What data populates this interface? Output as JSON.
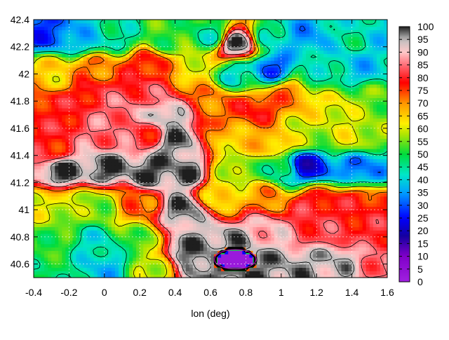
{
  "chart_data": {
    "type": "heatmap",
    "title": "",
    "xlabel": "lon (deg)",
    "ylabel": "",
    "xlim": [
      -0.4,
      1.6
    ],
    "ylim": [
      40.5,
      42.4
    ],
    "x_ticks": [
      "-0.4",
      "-0.2",
      "0",
      "0.2",
      "0.4",
      "0.6",
      "0.8",
      "1",
      "1.2",
      "1.4",
      "1.6"
    ],
    "y_ticks": [
      "40.6",
      "40.8",
      "41",
      "41.2",
      "41.4",
      "41.6",
      "41.8",
      "42",
      "42.2",
      "42.4"
    ],
    "colorbar_ticks": [
      "0",
      "5",
      "10",
      "15",
      "20",
      "25",
      "30",
      "35",
      "40",
      "45",
      "50",
      "55",
      "60",
      "65",
      "70",
      "75",
      "80",
      "85",
      "90",
      "95",
      "100"
    ],
    "colorbar_range": [
      0,
      100
    ],
    "grid": true,
    "contours": true,
    "value_regions": [
      {
        "lon": -0.32,
        "lat": 42.3,
        "value": 28
      },
      {
        "lon": -0.1,
        "lat": 42.25,
        "value": 38
      },
      {
        "lon": 0.1,
        "lat": 42.28,
        "value": 45
      },
      {
        "lon": 0.35,
        "lat": 42.25,
        "value": 52
      },
      {
        "lon": 0.6,
        "lat": 42.28,
        "value": 45
      },
      {
        "lon": 0.75,
        "lat": 42.22,
        "value": 99
      },
      {
        "lon": 0.95,
        "lat": 42.25,
        "value": 42
      },
      {
        "lon": 1.15,
        "lat": 42.28,
        "value": 35
      },
      {
        "lon": 1.4,
        "lat": 42.28,
        "value": 45
      },
      {
        "lon": 1.55,
        "lat": 42.3,
        "value": 40
      },
      {
        "lon": -0.3,
        "lat": 42.0,
        "value": 65
      },
      {
        "lon": -0.05,
        "lat": 42.05,
        "value": 72
      },
      {
        "lon": 0.25,
        "lat": 42.08,
        "value": 78
      },
      {
        "lon": 0.5,
        "lat": 42.05,
        "value": 62
      },
      {
        "lon": 0.75,
        "lat": 42.0,
        "value": 42
      },
      {
        "lon": 0.95,
        "lat": 42.05,
        "value": 30
      },
      {
        "lon": 1.2,
        "lat": 42.0,
        "value": 45
      },
      {
        "lon": 1.45,
        "lat": 42.05,
        "value": 38
      },
      {
        "lon": -0.3,
        "lat": 41.75,
        "value": 78
      },
      {
        "lon": -0.05,
        "lat": 41.85,
        "value": 80
      },
      {
        "lon": 0.1,
        "lat": 41.75,
        "value": 86
      },
      {
        "lon": 0.25,
        "lat": 41.85,
        "value": 82
      },
      {
        "lon": 0.35,
        "lat": 41.7,
        "value": 96
      },
      {
        "lon": 0.6,
        "lat": 41.8,
        "value": 72
      },
      {
        "lon": 0.85,
        "lat": 41.75,
        "value": 78
      },
      {
        "lon": 1.05,
        "lat": 41.85,
        "value": 72
      },
      {
        "lon": 1.3,
        "lat": 41.75,
        "value": 62
      },
      {
        "lon": 1.5,
        "lat": 41.8,
        "value": 55
      },
      {
        "lon": -0.3,
        "lat": 41.45,
        "value": 78
      },
      {
        "lon": 0.0,
        "lat": 41.55,
        "value": 85
      },
      {
        "lon": 0.25,
        "lat": 41.55,
        "value": 80
      },
      {
        "lon": 0.4,
        "lat": 41.5,
        "value": 98
      },
      {
        "lon": 0.7,
        "lat": 41.5,
        "value": 65
      },
      {
        "lon": 0.95,
        "lat": 41.5,
        "value": 68
      },
      {
        "lon": 1.15,
        "lat": 41.55,
        "value": 58
      },
      {
        "lon": 1.4,
        "lat": 41.55,
        "value": 60
      },
      {
        "lon": -0.25,
        "lat": 41.28,
        "value": 99
      },
      {
        "lon": 0.0,
        "lat": 41.3,
        "value": 99
      },
      {
        "lon": 0.25,
        "lat": 41.28,
        "value": 99
      },
      {
        "lon": 0.45,
        "lat": 41.28,
        "value": 98
      },
      {
        "lon": 0.75,
        "lat": 41.3,
        "value": 55
      },
      {
        "lon": 1.0,
        "lat": 41.28,
        "value": 45
      },
      {
        "lon": 1.15,
        "lat": 41.32,
        "value": 22
      },
      {
        "lon": 1.45,
        "lat": 41.3,
        "value": 32
      },
      {
        "lon": -0.3,
        "lat": 41.05,
        "value": 60
      },
      {
        "lon": -0.05,
        "lat": 41.05,
        "value": 55
      },
      {
        "lon": 0.2,
        "lat": 41.05,
        "value": 72
      },
      {
        "lon": 0.45,
        "lat": 41.0,
        "value": 98
      },
      {
        "lon": 0.65,
        "lat": 41.1,
        "value": 62
      },
      {
        "lon": 0.9,
        "lat": 41.1,
        "value": 70
      },
      {
        "lon": 1.2,
        "lat": 41.05,
        "value": 80
      },
      {
        "lon": 1.45,
        "lat": 41.05,
        "value": 78
      },
      {
        "lon": -0.3,
        "lat": 40.75,
        "value": 52
      },
      {
        "lon": -0.05,
        "lat": 40.75,
        "value": 42
      },
      {
        "lon": 0.2,
        "lat": 40.75,
        "value": 52
      },
      {
        "lon": 0.45,
        "lat": 40.7,
        "value": 98
      },
      {
        "lon": 0.7,
        "lat": 40.75,
        "value": 97
      },
      {
        "lon": 0.9,
        "lat": 40.85,
        "value": 90
      },
      {
        "lon": 1.2,
        "lat": 40.85,
        "value": 82
      },
      {
        "lon": 1.45,
        "lat": 40.85,
        "value": 80
      },
      {
        "lon": -0.3,
        "lat": 40.55,
        "value": 48
      },
      {
        "lon": 0.0,
        "lat": 40.58,
        "value": 38
      },
      {
        "lon": 0.3,
        "lat": 40.58,
        "value": 60
      },
      {
        "lon": 0.55,
        "lat": 40.58,
        "value": 98
      },
      {
        "lon": 0.8,
        "lat": 40.58,
        "value": 98
      },
      {
        "lon": 1.05,
        "lat": 40.58,
        "value": 96
      },
      {
        "lon": 1.3,
        "lat": 40.62,
        "value": 95
      },
      {
        "lon": 1.55,
        "lat": 40.58,
        "value": 85
      }
    ],
    "low_value_region": {
      "lon": [
        0.6,
        0.88
      ],
      "lat": [
        40.55,
        40.72
      ],
      "value": 2
    }
  },
  "colors": {
    "background": "#ffffff",
    "grid": "#ffffff",
    "contour": "#000000",
    "low_outline": "#c000c0"
  }
}
